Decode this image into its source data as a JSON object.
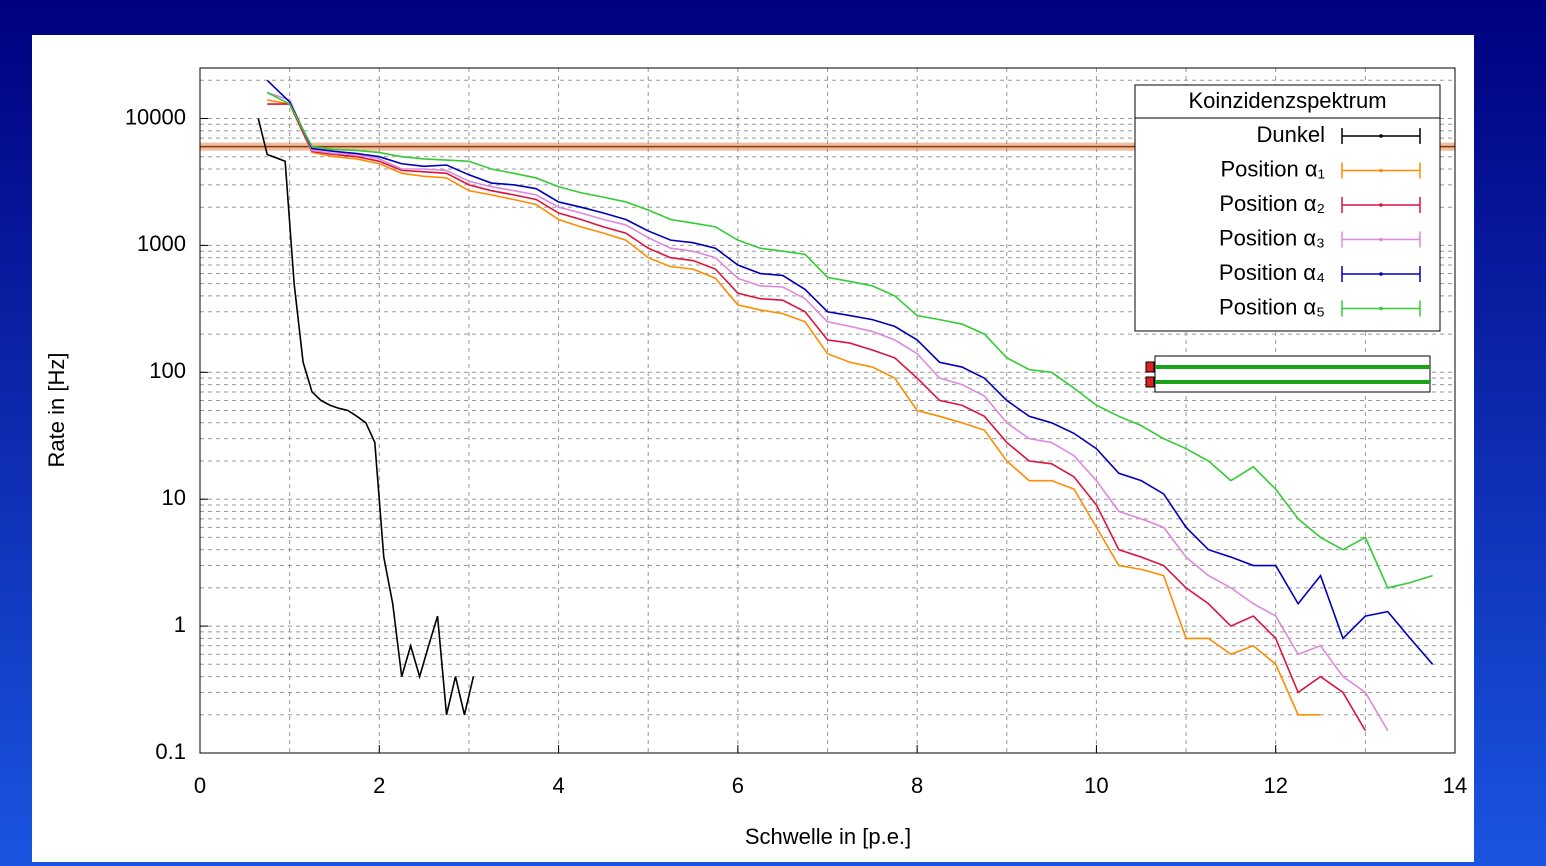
{
  "chart_data": {
    "type": "line",
    "xlabel": "Schwelle in [p.e.]",
    "ylabel": "Rate in [Hz]",
    "legend_title": "Koinzidenzspektrum",
    "legend": "upper right",
    "grid": true,
    "ylog": true,
    "xlim": [
      0,
      14
    ],
    "ylim": [
      0.1,
      25000
    ],
    "xticks": [
      0,
      2,
      4,
      6,
      8,
      10,
      12,
      14
    ],
    "yticks": [
      0.1,
      1,
      10,
      100,
      1000,
      10000
    ],
    "hline": {
      "value": 6000,
      "color": "#e07b39"
    },
    "series": [
      {
        "name": "Dunkel",
        "color": "#000000",
        "x": [
          0.65,
          0.75,
          0.85,
          0.95,
          1.05,
          1.15,
          1.25,
          1.35,
          1.45,
          1.55,
          1.65,
          1.75,
          1.85,
          1.95,
          2.05,
          2.15,
          2.25,
          2.35,
          2.45,
          2.55,
          2.65,
          2.75,
          2.85,
          2.95,
          3.05,
          3.25,
          3.45
        ],
        "values": [
          10000,
          5200,
          4900,
          4600,
          500,
          120,
          70,
          60,
          55,
          52,
          50,
          45,
          40,
          28,
          3.5,
          1.5,
          0.4,
          0.7,
          0.4,
          0.7,
          1.2,
          0.2,
          0.4,
          0.2,
          0.4,
          null,
          0.4
        ]
      },
      {
        "name": "Position α₁",
        "color": "#ff8c00",
        "x": [
          0.75,
          1,
          1.25,
          1.5,
          1.75,
          2,
          2.25,
          2.5,
          2.75,
          3,
          3.25,
          3.5,
          3.75,
          4,
          4.25,
          4.5,
          4.75,
          5,
          5.25,
          5.5,
          5.75,
          6,
          6.25,
          6.5,
          6.75,
          7,
          7.25,
          7.5,
          7.75,
          8,
          8.25,
          8.5,
          8.75,
          9,
          9.25,
          9.5,
          9.75,
          10,
          10.25,
          10.5,
          10.75,
          11,
          11.25,
          11.5,
          11.75,
          12,
          12.25,
          12.5,
          12.75,
          13,
          13.25,
          13.5,
          13.75
        ],
        "values": [
          14000,
          13000,
          5400,
          5000,
          4800,
          4400,
          3700,
          3500,
          3400,
          2700,
          2500,
          2300,
          2100,
          1600,
          1400,
          1250,
          1100,
          800,
          680,
          650,
          550,
          340,
          310,
          290,
          250,
          140,
          120,
          110,
          90,
          50,
          45,
          40,
          35,
          20,
          14,
          14,
          12,
          6,
          3,
          2.8,
          2.5,
          0.8,
          0.8,
          0.6,
          0.7,
          0.5,
          0.2,
          0.2,
          null,
          null,
          null,
          null,
          null
        ]
      },
      {
        "name": "Position α₂",
        "color": "#dc143c",
        "x": [
          0.75,
          1,
          1.25,
          1.5,
          1.75,
          2,
          2.25,
          2.5,
          2.75,
          3,
          3.25,
          3.5,
          3.75,
          4,
          4.25,
          4.5,
          4.75,
          5,
          5.25,
          5.5,
          5.75,
          6,
          6.25,
          6.5,
          6.75,
          7,
          7.25,
          7.5,
          7.75,
          8,
          8.25,
          8.5,
          8.75,
          9,
          9.25,
          9.5,
          9.75,
          10,
          10.25,
          10.5,
          10.75,
          11,
          11.25,
          11.5,
          11.75,
          12,
          12.25,
          12.5,
          12.75,
          13,
          13.25,
          13.5,
          13.75
        ],
        "values": [
          13000,
          13000,
          5500,
          5200,
          5000,
          4600,
          3900,
          3800,
          3700,
          3000,
          2700,
          2500,
          2300,
          1800,
          1600,
          1400,
          1250,
          950,
          800,
          760,
          650,
          420,
          380,
          370,
          300,
          180,
          170,
          150,
          130,
          90,
          60,
          55,
          45,
          28,
          20,
          19,
          15,
          9,
          4,
          3.5,
          3,
          2,
          1.5,
          1,
          1.2,
          0.8,
          0.3,
          0.4,
          0.3,
          0.15,
          null,
          null,
          null
        ]
      },
      {
        "name": "Position α₃",
        "color": "#dd88dd",
        "x": [
          0.75,
          1,
          1.25,
          1.5,
          1.75,
          2,
          2.25,
          2.5,
          2.75,
          3,
          3.25,
          3.5,
          3.75,
          4,
          4.25,
          4.5,
          4.75,
          5,
          5.25,
          5.5,
          5.75,
          6,
          6.25,
          6.5,
          6.75,
          7,
          7.25,
          7.5,
          7.75,
          8,
          8.25,
          8.5,
          8.75,
          9,
          9.25,
          9.5,
          9.75,
          10,
          10.25,
          10.5,
          10.75,
          11,
          11.25,
          11.5,
          11.75,
          12,
          12.25,
          12.5,
          12.75,
          13,
          13.25,
          13.5,
          13.75
        ],
        "values": [
          16000,
          14000,
          5600,
          5300,
          5200,
          4800,
          4000,
          4000,
          3900,
          3200,
          2900,
          2700,
          2500,
          2000,
          1800,
          1600,
          1450,
          1150,
          950,
          900,
          800,
          550,
          480,
          470,
          380,
          250,
          230,
          210,
          180,
          140,
          90,
          80,
          65,
          40,
          30,
          28,
          22,
          14,
          8,
          7,
          6,
          3.5,
          2.5,
          2,
          1.5,
          1.2,
          0.6,
          0.7,
          0.4,
          0.3,
          0.15,
          null,
          null
        ]
      },
      {
        "name": "Position α₄",
        "color": "#0000bb",
        "x": [
          0.75,
          1,
          1.25,
          1.5,
          1.75,
          2,
          2.25,
          2.5,
          2.75,
          3,
          3.25,
          3.5,
          3.75,
          4,
          4.25,
          4.5,
          4.75,
          5,
          5.25,
          5.5,
          5.75,
          6,
          6.25,
          6.5,
          6.75,
          7,
          7.25,
          7.5,
          7.75,
          8,
          8.25,
          8.5,
          8.75,
          9,
          9.25,
          9.5,
          9.75,
          10,
          10.25,
          10.5,
          10.75,
          11,
          11.25,
          11.5,
          11.75,
          12,
          12.25,
          12.5,
          12.75,
          13,
          13.25,
          13.5,
          13.75
        ],
        "values": [
          20000,
          13500,
          5800,
          5500,
          5300,
          5000,
          4400,
          4200,
          4300,
          3600,
          3100,
          3000,
          2800,
          2200,
          2000,
          1800,
          1600,
          1300,
          1100,
          1050,
          950,
          700,
          600,
          580,
          450,
          300,
          280,
          260,
          230,
          180,
          120,
          110,
          90,
          60,
          45,
          40,
          33,
          25,
          16,
          14,
          11,
          6,
          4,
          3.5,
          3,
          3,
          1.5,
          2.5,
          0.8,
          1.2,
          1.3,
          0.8,
          0.5
        ]
      },
      {
        "name": "Position α₅",
        "color": "#33cc33",
        "x": [
          0.75,
          1,
          1.25,
          1.5,
          1.75,
          2,
          2.25,
          2.5,
          2.75,
          3,
          3.25,
          3.5,
          3.75,
          4,
          4.25,
          4.5,
          4.75,
          5,
          5.25,
          5.5,
          5.75,
          6,
          6.25,
          6.5,
          6.75,
          7,
          7.25,
          7.5,
          7.75,
          8,
          8.25,
          8.5,
          8.75,
          9,
          9.25,
          9.5,
          9.75,
          10,
          10.25,
          10.5,
          10.75,
          11,
          11.25,
          11.5,
          11.75,
          12,
          12.25,
          12.5,
          12.75,
          13,
          13.25,
          13.5,
          13.75
        ],
        "values": [
          16000,
          13000,
          6000,
          5700,
          5600,
          5400,
          5000,
          4800,
          4700,
          4600,
          4000,
          3700,
          3400,
          2900,
          2600,
          2400,
          2200,
          1900,
          1600,
          1500,
          1400,
          1100,
          950,
          900,
          850,
          560,
          520,
          480,
          400,
          280,
          260,
          240,
          200,
          130,
          105,
          100,
          75,
          55,
          45,
          38,
          30,
          25,
          20,
          14,
          18,
          12,
          7,
          5,
          4,
          5,
          2,
          2.2,
          2.5
        ]
      }
    ]
  }
}
